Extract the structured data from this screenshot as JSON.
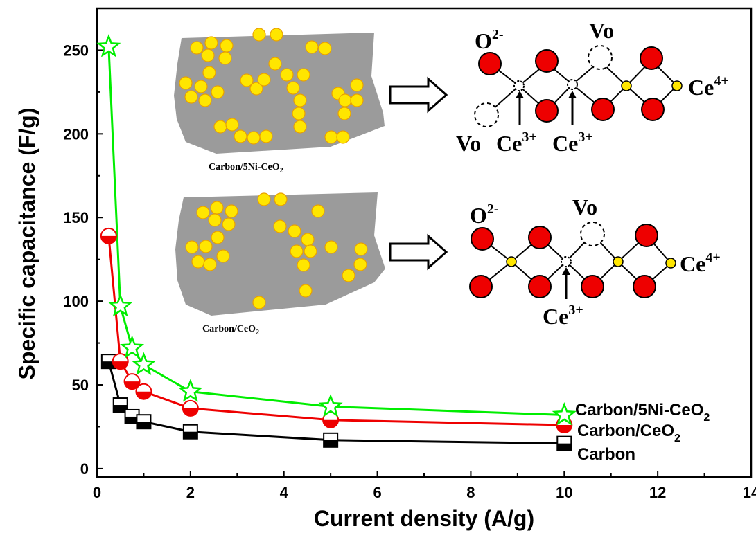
{
  "chart_data": {
    "type": "line",
    "xlabel": "Current density (A/g)",
    "ylabel": "Specific capacitance (F/g)",
    "xlim": [
      0,
      14
    ],
    "ylim": [
      -5,
      275
    ],
    "x_ticks": [
      0,
      2,
      4,
      6,
      8,
      10,
      12,
      14
    ],
    "y_ticks": [
      0,
      50,
      100,
      150,
      200,
      250
    ],
    "grid": false,
    "x": [
      0.25,
      0.5,
      0.75,
      1,
      2,
      5,
      10
    ],
    "series": [
      {
        "name": "Carbon/5Ni-CeO2",
        "display": {
          "main": "Carbon/5Ni-CeO",
          "sub": "2"
        },
        "marker": "star",
        "color": "#00ee00",
        "values": [
          252,
          97,
          72,
          62,
          46,
          37,
          32
        ]
      },
      {
        "name": "Carbon/CeO2",
        "display": {
          "main": "Carbon/CeO",
          "sub": "2"
        },
        "marker": "circle-half",
        "color": "#ee0000",
        "values": [
          139,
          64,
          52,
          46,
          36,
          29,
          26
        ]
      },
      {
        "name": "Carbon",
        "display": {
          "main": "Carbon",
          "sub": ""
        },
        "marker": "square-half",
        "color": "#000000",
        "values": [
          64,
          38,
          31,
          28,
          22,
          17,
          15
        ]
      }
    ],
    "legend_placement": "bottom-right",
    "inset": {
      "label_top": {
        "main": "Carbon/5Ni-CeO",
        "sub": "2"
      },
      "label_bottom": {
        "main": "Carbon/CeO",
        "sub": "2"
      },
      "colors": {
        "particle": "#ffe600",
        "particle_edge": "#e8a000",
        "flake": "#9b9b9b",
        "oxygen": "#ee0000",
        "cerium": "#ffe600"
      },
      "top_lattice": {
        "o_label": {
          "main": "O",
          "sup": "2-"
        },
        "vo_top": "Vo",
        "vo_bottom": "Vo",
        "ce3_a": {
          "main": "Ce",
          "sup": "3+"
        },
        "ce3_b": {
          "main": "Ce",
          "sup": "3+"
        },
        "ce4": {
          "main": "Ce",
          "sup": "4+"
        }
      },
      "bottom_lattice": {
        "o_label": {
          "main": "O",
          "sup": "2-"
        },
        "vo_top": "Vo",
        "ce3": {
          "main": "Ce",
          "sup": "3+"
        },
        "ce4": {
          "main": "Ce",
          "sup": "4+"
        }
      }
    }
  }
}
